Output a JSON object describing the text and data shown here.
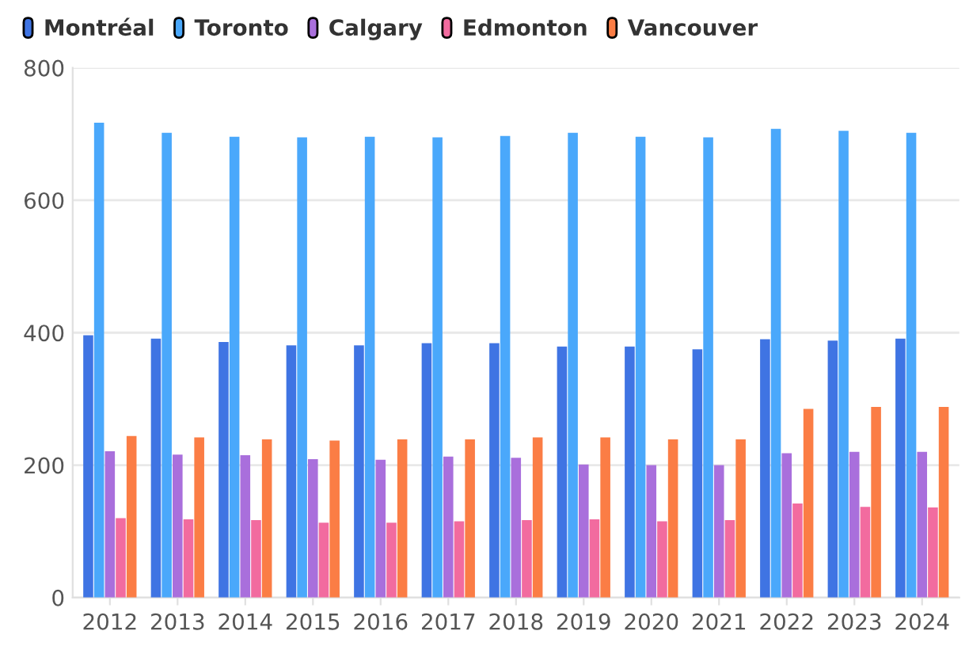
{
  "chart_data": {
    "type": "bar",
    "categories": [
      "2012",
      "2013",
      "2014",
      "2015",
      "2016",
      "2017",
      "2018",
      "2019",
      "2020",
      "2021",
      "2022",
      "2023",
      "2024"
    ],
    "series": [
      {
        "name": "Montréal",
        "color": "#3f74e3",
        "values": [
          396,
          391,
          386,
          381,
          381,
          384,
          384,
          379,
          379,
          375,
          390,
          388,
          391
        ]
      },
      {
        "name": "Toronto",
        "color": "#4aa8fb",
        "values": [
          717,
          702,
          696,
          695,
          696,
          695,
          697,
          702,
          696,
          695,
          708,
          705,
          702
        ]
      },
      {
        "name": "Calgary",
        "color": "#a96fdc",
        "values": [
          221,
          216,
          215,
          209,
          208,
          213,
          211,
          201,
          200,
          200,
          218,
          220,
          220
        ]
      },
      {
        "name": "Edmonton",
        "color": "#f26b9f",
        "values": [
          120,
          118,
          117,
          113,
          113,
          115,
          117,
          118,
          115,
          117,
          142,
          137,
          136
        ]
      },
      {
        "name": "Vancouver",
        "color": "#fb7d45",
        "values": [
          244,
          242,
          239,
          237,
          239,
          239,
          242,
          242,
          239,
          239,
          285,
          288,
          288
        ]
      }
    ],
    "ylim": [
      0,
      800
    ],
    "yticks": [
      0,
      200,
      400,
      600,
      800
    ],
    "grid": "y",
    "legend": "top left"
  }
}
